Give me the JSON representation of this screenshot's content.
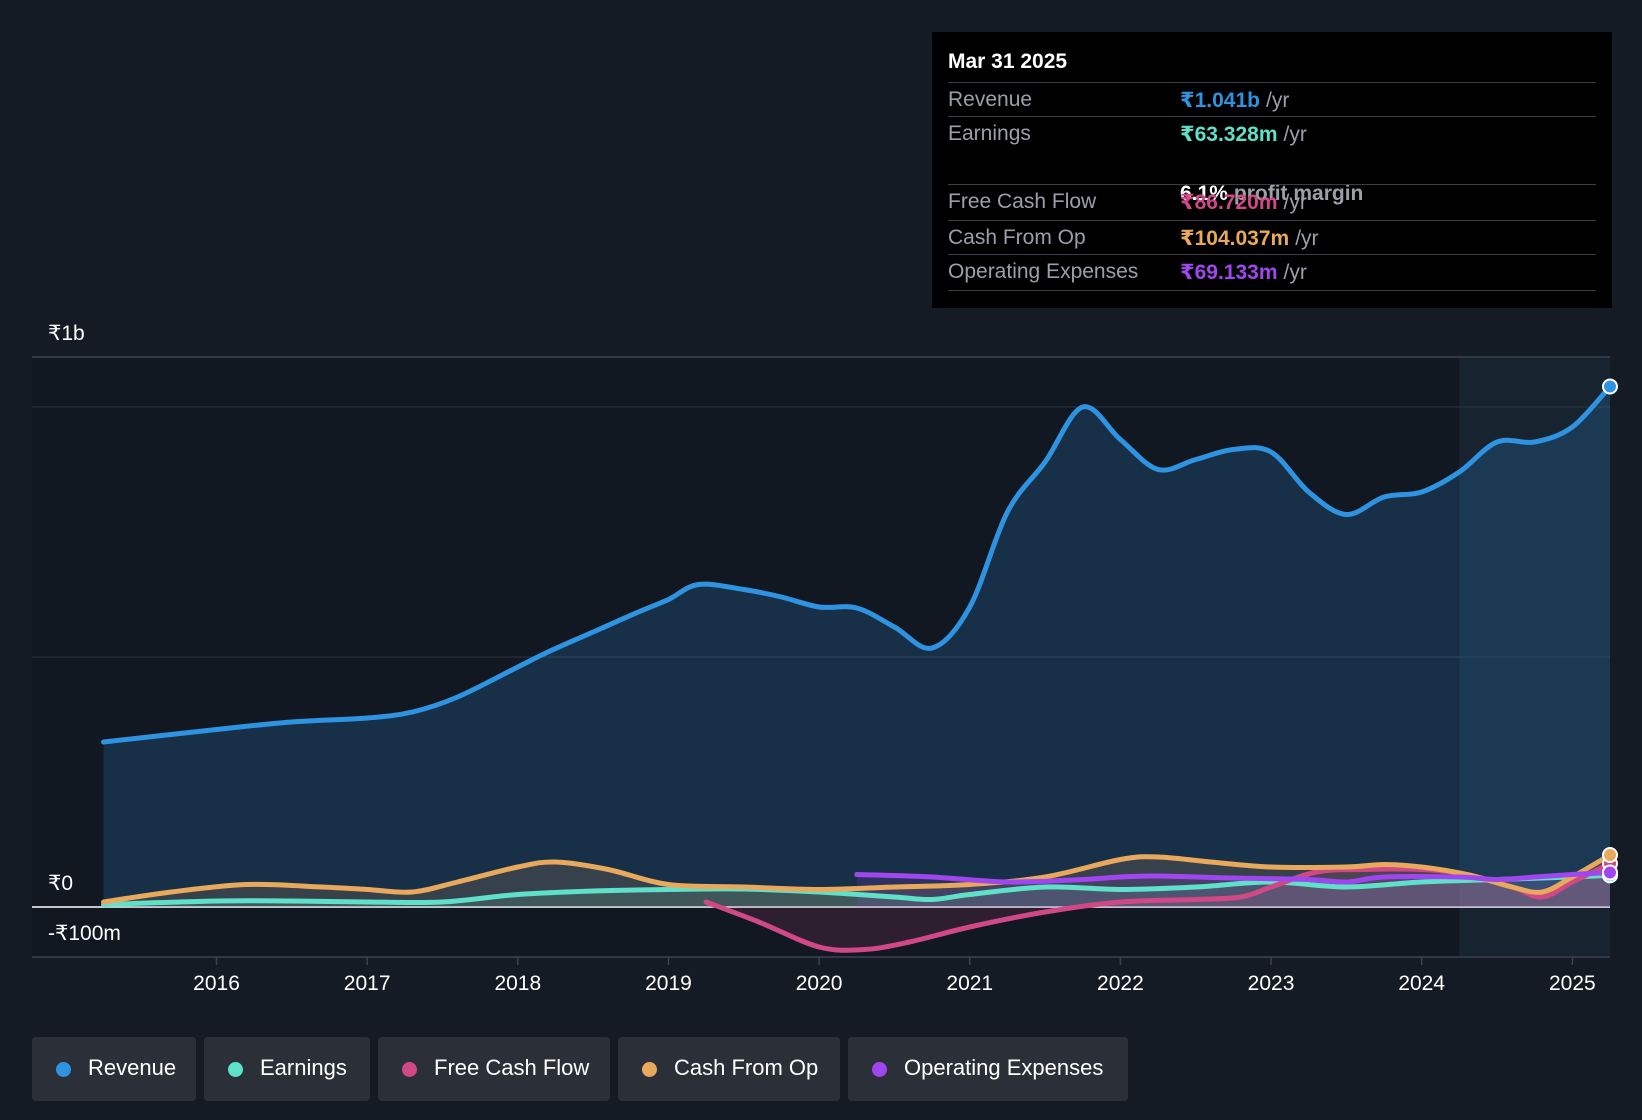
{
  "chart_data": {
    "type": "area",
    "currency_symbol": "₹",
    "y_axis_labels": {
      "top": "₹1b",
      "zero": "₹0",
      "bottom": "-₹100m"
    },
    "ylim": [
      -100,
      1100
    ],
    "x_range": [
      2015.2,
      2025.25
    ],
    "x_ticks": [
      "2016",
      "2017",
      "2018",
      "2019",
      "2020",
      "2021",
      "2022",
      "2023",
      "2024",
      "2025"
    ],
    "gridlines": [
      0,
      500,
      1000
    ],
    "highlight_start": 2024.25,
    "series": [
      {
        "name": "Revenue",
        "unit": "₹m",
        "color": "#2e93e0",
        "points": [
          [
            2015.25,
            330
          ],
          [
            2016.0,
            355
          ],
          [
            2016.5,
            370
          ],
          [
            2017.0,
            378
          ],
          [
            2017.3,
            390
          ],
          [
            2017.6,
            420
          ],
          [
            2018.0,
            480
          ],
          [
            2018.2,
            510
          ],
          [
            2018.5,
            550
          ],
          [
            2018.8,
            590
          ],
          [
            2019.0,
            615
          ],
          [
            2019.2,
            645
          ],
          [
            2019.5,
            635
          ],
          [
            2019.75,
            620
          ],
          [
            2020.0,
            600
          ],
          [
            2020.25,
            598
          ],
          [
            2020.5,
            560
          ],
          [
            2020.75,
            518
          ],
          [
            2021.0,
            600
          ],
          [
            2021.25,
            790
          ],
          [
            2021.5,
            890
          ],
          [
            2021.75,
            1000
          ],
          [
            2022.0,
            935
          ],
          [
            2022.25,
            875
          ],
          [
            2022.5,
            895
          ],
          [
            2022.75,
            915
          ],
          [
            2023.0,
            910
          ],
          [
            2023.25,
            830
          ],
          [
            2023.5,
            785
          ],
          [
            2023.75,
            820
          ],
          [
            2024.0,
            830
          ],
          [
            2024.25,
            870
          ],
          [
            2024.5,
            930
          ],
          [
            2024.75,
            930
          ],
          [
            2025.0,
            960
          ],
          [
            2025.25,
            1041
          ]
        ]
      },
      {
        "name": "Earnings",
        "unit": "₹m",
        "color": "#5fe0c8",
        "points": [
          [
            2015.25,
            5
          ],
          [
            2016.0,
            12
          ],
          [
            2016.5,
            12
          ],
          [
            2017.0,
            10
          ],
          [
            2017.5,
            10
          ],
          [
            2018.0,
            25
          ],
          [
            2018.5,
            32
          ],
          [
            2019.0,
            35
          ],
          [
            2019.5,
            36
          ],
          [
            2020.0,
            30
          ],
          [
            2020.5,
            20
          ],
          [
            2020.75,
            15
          ],
          [
            2021.0,
            25
          ],
          [
            2021.5,
            40
          ],
          [
            2022.0,
            35
          ],
          [
            2022.5,
            40
          ],
          [
            2023.0,
            50
          ],
          [
            2023.5,
            40
          ],
          [
            2024.0,
            50
          ],
          [
            2024.5,
            55
          ],
          [
            2025.0,
            60
          ],
          [
            2025.25,
            63.3
          ]
        ]
      },
      {
        "name": "Free Cash Flow",
        "unit": "₹m",
        "color": "#d14887",
        "points": [
          [
            2019.25,
            10
          ],
          [
            2019.6,
            -30
          ],
          [
            2020.0,
            -80
          ],
          [
            2020.3,
            -85
          ],
          [
            2020.6,
            -70
          ],
          [
            2021.0,
            -40
          ],
          [
            2021.5,
            -10
          ],
          [
            2022.0,
            10
          ],
          [
            2022.5,
            15
          ],
          [
            2022.8,
            20
          ],
          [
            2023.0,
            40
          ],
          [
            2023.3,
            70
          ],
          [
            2023.6,
            75
          ],
          [
            2024.0,
            75
          ],
          [
            2024.3,
            65
          ],
          [
            2024.6,
            40
          ],
          [
            2024.8,
            20
          ],
          [
            2025.0,
            50
          ],
          [
            2025.25,
            86.7
          ]
        ]
      },
      {
        "name": "Cash From Op",
        "unit": "₹m",
        "color": "#e8a95c",
        "points": [
          [
            2015.25,
            10
          ],
          [
            2015.7,
            30
          ],
          [
            2016.2,
            45
          ],
          [
            2016.7,
            40
          ],
          [
            2017.0,
            35
          ],
          [
            2017.3,
            30
          ],
          [
            2017.6,
            50
          ],
          [
            2018.0,
            80
          ],
          [
            2018.25,
            90
          ],
          [
            2018.6,
            75
          ],
          [
            2019.0,
            45
          ],
          [
            2019.5,
            40
          ],
          [
            2020.0,
            35
          ],
          [
            2020.5,
            40
          ],
          [
            2021.0,
            45
          ],
          [
            2021.5,
            60
          ],
          [
            2022.0,
            95
          ],
          [
            2022.25,
            100
          ],
          [
            2022.6,
            90
          ],
          [
            2023.0,
            80
          ],
          [
            2023.5,
            80
          ],
          [
            2023.75,
            85
          ],
          [
            2024.0,
            80
          ],
          [
            2024.3,
            65
          ],
          [
            2024.6,
            40
          ],
          [
            2024.8,
            30
          ],
          [
            2025.0,
            60
          ],
          [
            2025.25,
            104
          ]
        ]
      },
      {
        "name": "Operating Expenses",
        "unit": "₹m",
        "color": "#a046ee",
        "points": [
          [
            2020.25,
            65
          ],
          [
            2020.75,
            60
          ],
          [
            2021.25,
            50
          ],
          [
            2021.75,
            55
          ],
          [
            2022.0,
            60
          ],
          [
            2022.25,
            62
          ],
          [
            2022.75,
            58
          ],
          [
            2023.25,
            55
          ],
          [
            2023.5,
            50
          ],
          [
            2023.75,
            60
          ],
          [
            2024.25,
            60
          ],
          [
            2024.5,
            55
          ],
          [
            2024.75,
            60
          ],
          [
            2025.0,
            65
          ],
          [
            2025.25,
            69.1
          ]
        ]
      }
    ]
  },
  "tooltip": {
    "date": "Mar 31 2025",
    "rows": [
      {
        "label": "Revenue",
        "value": "₹1.041b",
        "unit": "/yr",
        "color": "#2e93e0"
      },
      {
        "label": "Earnings",
        "value": "₹63.328m",
        "unit": "/yr",
        "color": "#5fe0c8"
      },
      {
        "label": "Free Cash Flow",
        "value": "₹86.720m",
        "unit": "/yr",
        "color": "#d14887"
      },
      {
        "label": "Cash From Op",
        "value": "₹104.037m",
        "unit": "/yr",
        "color": "#e8a95c"
      },
      {
        "label": "Operating Expenses",
        "value": "₹69.133m",
        "unit": "/yr",
        "color": "#a046ee"
      }
    ],
    "profit_margin": {
      "value": "6.1%",
      "label": "profit margin"
    }
  },
  "legend": [
    {
      "label": "Revenue",
      "color": "#2e93e0"
    },
    {
      "label": "Earnings",
      "color": "#5fe0c8"
    },
    {
      "label": "Free Cash Flow",
      "color": "#d14887"
    },
    {
      "label": "Cash From Op",
      "color": "#e8a95c"
    },
    {
      "label": "Operating Expenses",
      "color": "#a046ee"
    }
  ]
}
